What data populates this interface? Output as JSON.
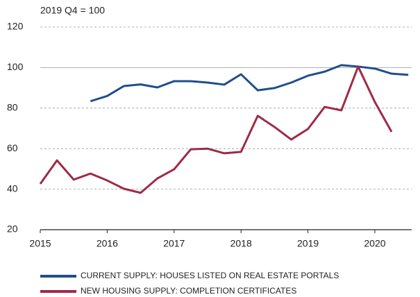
{
  "chart_data": {
    "type": "line",
    "y_label": "2019 Q4 = 100",
    "x": [
      2015,
      2015.25,
      2015.5,
      2015.75,
      2016,
      2016.25,
      2016.5,
      2016.75,
      2017,
      2017.25,
      2017.5,
      2017.75,
      2018,
      2018.25,
      2018.5,
      2018.75,
      2019,
      2019.25,
      2019.5,
      2019.75,
      2020,
      2020.25,
      2020.5
    ],
    "series": [
      {
        "name": "CURRENT SUPPLY: HOUSES LISTED ON REAL ESTATE PORTALS",
        "color": "#1f4e8c",
        "values": [
          null,
          null,
          null,
          83.4,
          86,
          90.9,
          91.7,
          90.2,
          93.3,
          93.3,
          92.6,
          91.6,
          96.7,
          88.8,
          89.9,
          92.6,
          96,
          98,
          101.2,
          100.5,
          99.5,
          97,
          96.4
        ]
      },
      {
        "name": "NEW HOUSING SUPPLY: COMPLETION CERTIFICATES",
        "color": "#9e2a47",
        "values": [
          42.6,
          54.2,
          44.7,
          47.7,
          44.3,
          40.2,
          38.2,
          45.3,
          49.8,
          59.7,
          60,
          57.7,
          58.4,
          76.2,
          70.7,
          64.5,
          69.7,
          80.6,
          78.9,
          100.5,
          83,
          68.3,
          null
        ]
      }
    ],
    "xlim": [
      2015,
      2020.55
    ],
    "xticks": [
      2015,
      2016,
      2017,
      2018,
      2019,
      2020
    ],
    "ylim": [
      20,
      120
    ],
    "yticks": [
      20,
      40,
      60,
      80,
      100,
      120
    ],
    "grid": true,
    "legend": "bottom"
  }
}
